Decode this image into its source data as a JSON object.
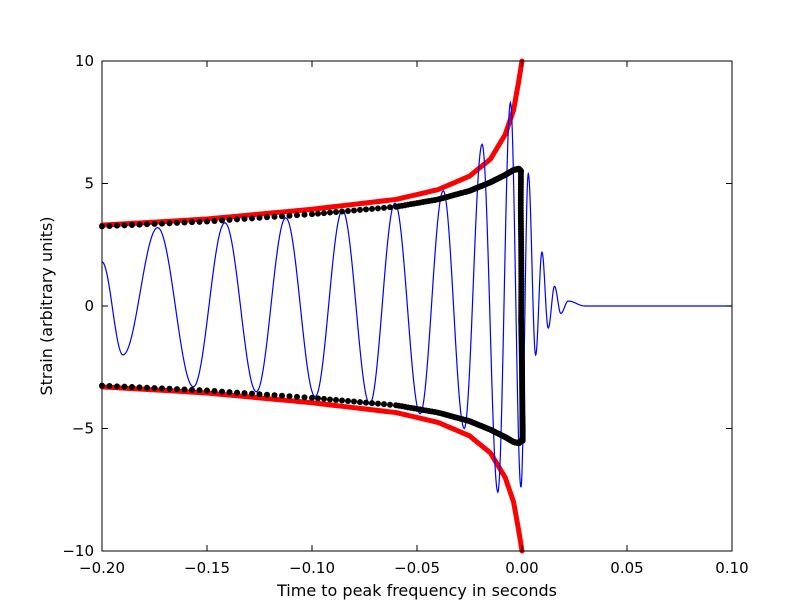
{
  "chart_data": {
    "type": "line",
    "xlabel": "Time to peak frequency in seconds",
    "ylabel": "Strain (arbitrary units)",
    "xlim": [
      -0.2,
      0.1
    ],
    "ylim": [
      -10,
      10
    ],
    "grid": false,
    "x_ticks": [
      -0.2,
      -0.15,
      -0.1,
      -0.05,
      0.0,
      0.05,
      0.1
    ],
    "x_tick_labels": [
      "−0.20",
      "−0.15",
      "−0.10",
      "−0.05",
      "0.00",
      "0.05",
      "0.10"
    ],
    "y_ticks": [
      10,
      5,
      0,
      -5,
      -10
    ],
    "y_tick_labels": [
      "10",
      "5",
      "0",
      "−5",
      "−10"
    ],
    "series": [
      {
        "style": "line",
        "color": "#0000ff",
        "description_points": "oscillating waveform; upper peaks",
        "x": [
          -0.2,
          -0.19,
          -0.1735,
          -0.1565,
          -0.1415,
          -0.1265,
          -0.1125,
          -0.0985,
          -0.0855,
          -0.0725,
          -0.0605,
          -0.0485,
          -0.0375,
          -0.0275,
          -0.019,
          -0.0115,
          -0.0055,
          -0.0005,
          0.003,
          0.0065,
          0.0095,
          0.0125,
          0.0155,
          0.0185,
          0.022,
          0.03,
          0.1
        ],
        "y": [
          1.8,
          -2.0,
          3.2,
          -3.3,
          3.4,
          -3.5,
          3.6,
          -3.7,
          3.9,
          -4.0,
          4.2,
          -4.4,
          4.7,
          -5.0,
          6.6,
          -7.6,
          8.3,
          -7.4,
          5.4,
          -2.0,
          2.2,
          -0.9,
          0.8,
          -0.3,
          0.2,
          0.0,
          0.0
        ]
      },
      {
        "style": "thick-line",
        "color": "#ff0000",
        "x": [
          -0.2,
          -0.15,
          -0.1,
          -0.06,
          -0.04,
          -0.025,
          -0.015,
          -0.008,
          -0.004,
          -0.0015,
          0.0
        ],
        "y": [
          3.3,
          3.55,
          3.95,
          4.35,
          4.75,
          5.3,
          6.0,
          7.0,
          8.0,
          9.2,
          10.0
        ]
      },
      {
        "style": "thick-line",
        "color": "#ff0000",
        "x": [
          -0.2,
          -0.15,
          -0.1,
          -0.06,
          -0.04,
          -0.025,
          -0.015,
          -0.008,
          -0.004,
          -0.0015,
          0.0
        ],
        "y": [
          -3.3,
          -3.55,
          -3.95,
          -4.35,
          -4.75,
          -5.3,
          -6.0,
          -7.0,
          -8.0,
          -9.2,
          -10.0
        ]
      },
      {
        "style": "dots",
        "color": "#000000",
        "x": [
          -0.2,
          -0.15,
          -0.1,
          -0.06,
          -0.04,
          -0.025,
          -0.015,
          -0.008,
          -0.004,
          -0.0015,
          -0.0005
        ],
        "y": [
          3.25,
          3.45,
          3.75,
          4.05,
          4.35,
          4.7,
          5.05,
          5.35,
          5.55,
          5.6,
          5.5
        ]
      },
      {
        "style": "dots",
        "color": "#000000",
        "x": [
          -0.2,
          -0.15,
          -0.1,
          -0.06,
          -0.04,
          -0.025,
          -0.015,
          -0.008,
          -0.004,
          -0.0015,
          -0.0005
        ],
        "y": [
          -3.25,
          -3.45,
          -3.75,
          -4.05,
          -4.35,
          -4.7,
          -5.05,
          -5.35,
          -5.55,
          -5.6,
          -5.5
        ]
      },
      {
        "style": "dots",
        "color": "#000000",
        "x": [
          -0.0005,
          -0.0006,
          -0.0004,
          -0.0003,
          -0.0004,
          -0.0002,
          0.0,
          0.0001,
          0.0002,
          0.0003,
          0.0003
        ],
        "y": [
          5.5,
          4.0,
          2.5,
          1.0,
          -0.5,
          -1.5,
          -2.5,
          -3.5,
          -4.5,
          -5.0,
          -5.5
        ]
      }
    ]
  }
}
